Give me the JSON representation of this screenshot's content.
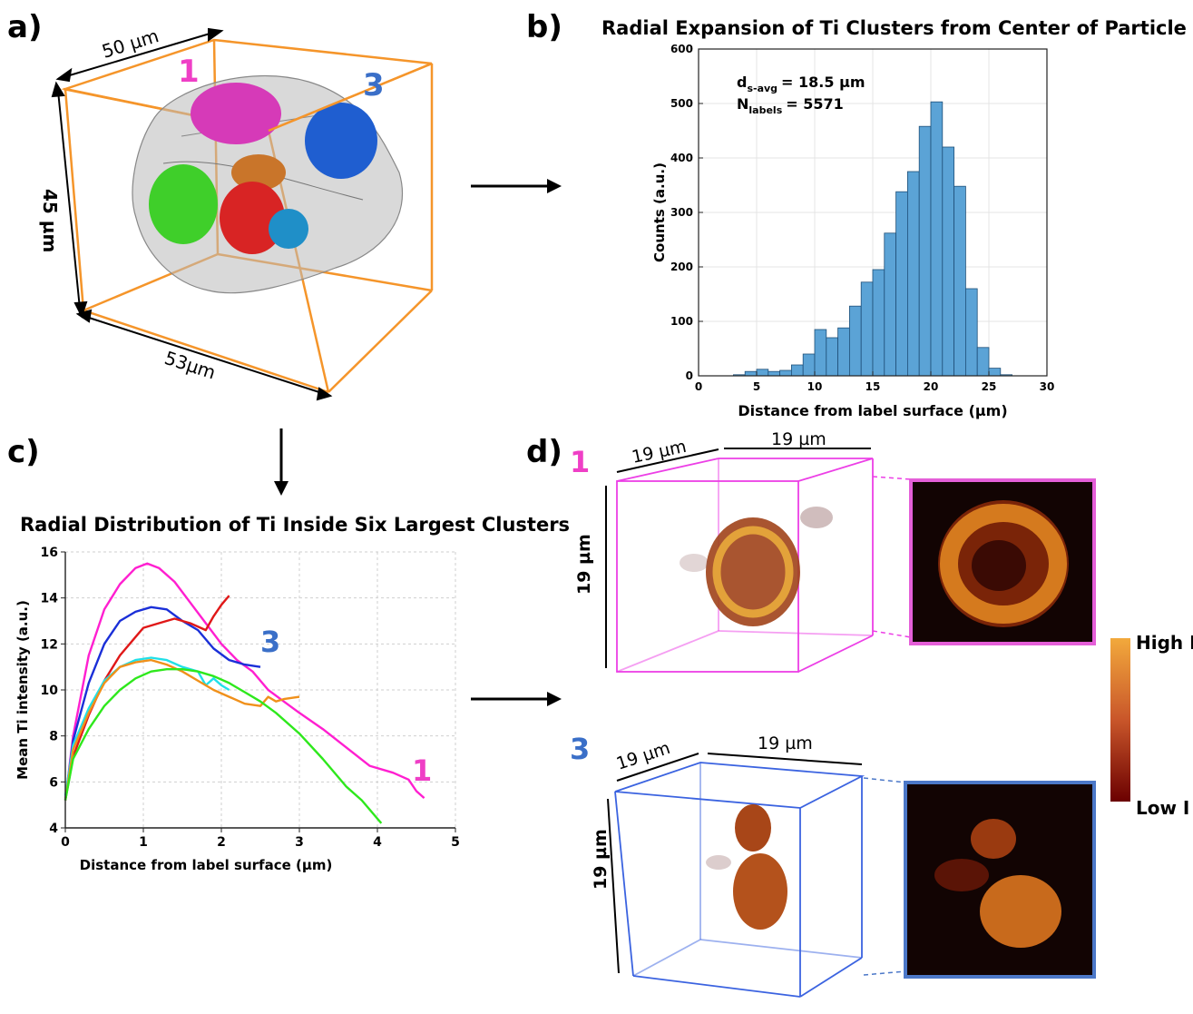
{
  "panels": {
    "a": {
      "letter": "a)",
      "dim_top": "50 µm",
      "dim_side": "45 µm",
      "dim_bottom": "53µm",
      "cluster_labels": [
        "1",
        "3"
      ],
      "colors": {
        "box": "#f5952a",
        "cluster1": "#d63ab8",
        "cluster3": "#1f5ed0",
        "green": "#3fcf2a",
        "red": "#d82424",
        "orange": "#c9752a",
        "cyan": "#1f8fc8",
        "shell": "#b9b9b9"
      }
    },
    "b": {
      "letter": "b)",
      "title": "Radial Expansion of Ti Clusters from Center of Particle",
      "annot_d": "d",
      "annot_d_sub": "s-avg",
      "annot_d_val": "=   18.5 µm",
      "annot_n": "N",
      "annot_n_sub": "labels",
      "annot_n_val": "= 5571"
    },
    "c": {
      "letter": "c)",
      "title": "Radial Distribution of Ti Inside Six Largest Clusters",
      "label_1": "1",
      "label_3": "3"
    },
    "d": {
      "letter": "d)",
      "label_1": "1",
      "label_3": "3",
      "dim": "19 µm",
      "colorbar_high": "High I",
      "colorbar_low": "Low I",
      "colors": {
        "box1": "#ec3fe6",
        "box3": "#3b63e0",
        "frame1": "#e45fd8",
        "frame3": "#4c78c8",
        "bar_high": "#f2a93c",
        "bar_low": "#6b0000"
      }
    }
  },
  "chart_data": [
    {
      "type": "bar",
      "title": "Radial Expansion of Ti Clusters from Center of Particle",
      "xlabel": "Distance from label surface (µm)",
      "ylabel": "Counts (a.u.)",
      "xlim": [
        0,
        30
      ],
      "ylim": [
        0,
        600
      ],
      "xticks": [
        0,
        5,
        10,
        15,
        20,
        25,
        30
      ],
      "yticks": [
        0,
        100,
        200,
        300,
        400,
        500,
        600
      ],
      "bin_width": 1,
      "bin_starts": [
        3,
        4,
        5,
        6,
        7,
        8,
        9,
        10,
        11,
        12,
        13,
        14,
        15,
        16,
        17,
        18,
        19,
        20,
        21,
        22,
        23,
        24,
        25,
        26
      ],
      "values": [
        2,
        8,
        12,
        8,
        10,
        20,
        40,
        85,
        70,
        88,
        128,
        172,
        195,
        262,
        338,
        375,
        458,
        503,
        420,
        348,
        160,
        52,
        14,
        2
      ],
      "bar_color": "#5ba3d6",
      "grid": true,
      "legend": "none"
    },
    {
      "type": "line",
      "title": "Radial Distribution of Ti Inside Six Largest Clusters",
      "xlabel": "Distance from label surface (µm)",
      "ylabel": "Mean Ti intensity (a.u.)",
      "xlim": [
        0,
        5
      ],
      "ylim": [
        4,
        16
      ],
      "xticks": [
        0,
        1,
        2,
        3,
        4,
        5
      ],
      "yticks": [
        4,
        6,
        8,
        10,
        12,
        14,
        16
      ],
      "grid": true,
      "series": [
        {
          "color": "#ff1fd0",
          "x": [
            0,
            0.1,
            0.3,
            0.5,
            0.7,
            0.9,
            1.05,
            1.2,
            1.4,
            1.6,
            1.8,
            2.0,
            2.2,
            2.4,
            2.6,
            2.8,
            3.0,
            3.3,
            3.6,
            3.9,
            4.2,
            4.4,
            4.5,
            4.6
          ],
          "y": [
            5.2,
            8.0,
            11.5,
            13.5,
            14.6,
            15.3,
            15.5,
            15.3,
            14.7,
            13.8,
            12.9,
            12.0,
            11.3,
            10.8,
            10.0,
            9.5,
            9.0,
            8.3,
            7.5,
            6.7,
            6.4,
            6.1,
            5.6,
            5.3
          ]
        },
        {
          "color": "#1a2fd8",
          "x": [
            0,
            0.1,
            0.3,
            0.5,
            0.7,
            0.9,
            1.1,
            1.3,
            1.5,
            1.7,
            1.9,
            2.1,
            2.3,
            2.5
          ],
          "y": [
            5.2,
            7.8,
            10.3,
            12.0,
            13.0,
            13.4,
            13.6,
            13.5,
            13.0,
            12.6,
            11.8,
            11.3,
            11.1,
            11.0
          ]
        },
        {
          "color": "#e01818",
          "x": [
            0,
            0.1,
            0.3,
            0.5,
            0.7,
            0.9,
            1.0,
            1.2,
            1.4,
            1.6,
            1.8,
            1.9,
            2.0,
            2.1
          ],
          "y": [
            5.2,
            7.1,
            8.9,
            10.4,
            11.5,
            12.3,
            12.7,
            12.9,
            13.1,
            12.9,
            12.6,
            13.2,
            13.7,
            14.1
          ]
        },
        {
          "color": "#20e0e8",
          "x": [
            0,
            0.1,
            0.3,
            0.5,
            0.7,
            0.9,
            1.1,
            1.3,
            1.5,
            1.7,
            1.8,
            1.9,
            2.0,
            2.1
          ],
          "y": [
            5.4,
            7.6,
            9.2,
            10.4,
            11.0,
            11.3,
            11.4,
            11.3,
            11.0,
            10.8,
            10.2,
            10.5,
            10.2,
            10.0
          ]
        },
        {
          "color": "#f0901a",
          "x": [
            0,
            0.1,
            0.3,
            0.5,
            0.7,
            0.9,
            1.1,
            1.3,
            1.5,
            1.7,
            1.9,
            2.1,
            2.3,
            2.5,
            2.6,
            2.7,
            2.8,
            3.0
          ],
          "y": [
            5.2,
            7.4,
            9.0,
            10.3,
            11.0,
            11.2,
            11.3,
            11.1,
            10.8,
            10.4,
            10.0,
            9.7,
            9.4,
            9.3,
            9.7,
            9.5,
            9.6,
            9.7
          ]
        },
        {
          "color": "#2ee81c",
          "x": [
            0,
            0.1,
            0.3,
            0.5,
            0.7,
            0.9,
            1.1,
            1.3,
            1.5,
            1.7,
            1.9,
            2.1,
            2.3,
            2.5,
            2.7,
            3.0,
            3.3,
            3.6,
            3.8,
            4.05
          ],
          "y": [
            5.2,
            7.0,
            8.3,
            9.3,
            10.0,
            10.5,
            10.8,
            10.9,
            10.9,
            10.8,
            10.6,
            10.3,
            9.9,
            9.5,
            9.0,
            8.1,
            7.0,
            5.8,
            5.2,
            4.2
          ]
        }
      ]
    }
  ]
}
